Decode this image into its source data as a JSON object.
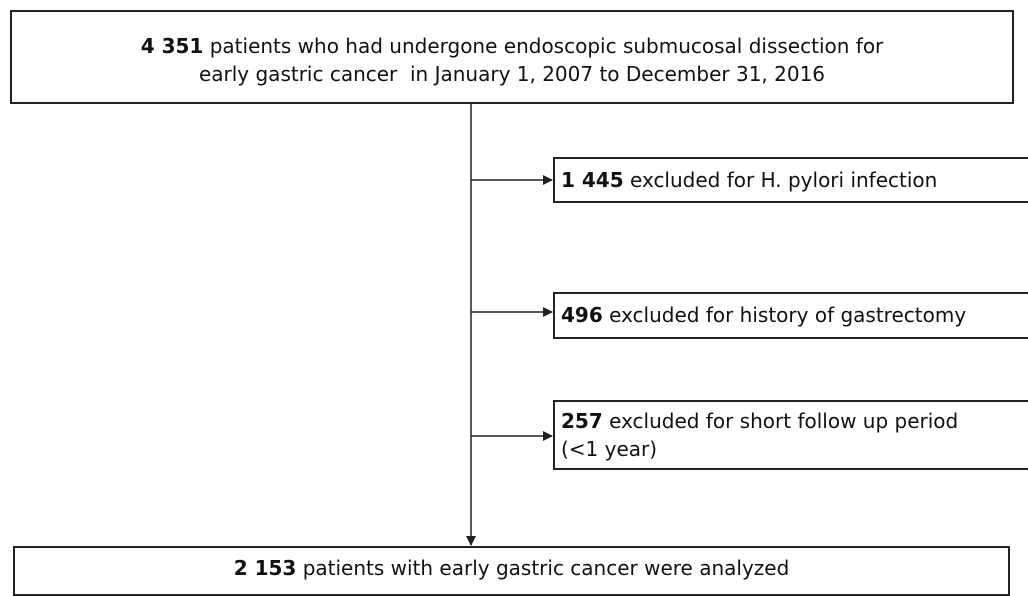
{
  "nodes": [
    {
      "count": "4 351",
      "lines": [
        "patients who had undergone endoscopic submucosal dissection for",
        "early gastric cancer  in January 1, 2007 to December 31, 2016"
      ]
    },
    {
      "count": "1 445",
      "lines": [
        "excluded for H. pylori infection"
      ]
    },
    {
      "count": "496",
      "lines": [
        "excluded for history of gastrectomy"
      ]
    },
    {
      "count": "257",
      "lines": [
        "excluded for short follow up period",
        "(<1 year)"
      ]
    },
    {
      "count": "2 153",
      "lines": [
        "patients with early gastric cancer were analyzed"
      ]
    }
  ]
}
